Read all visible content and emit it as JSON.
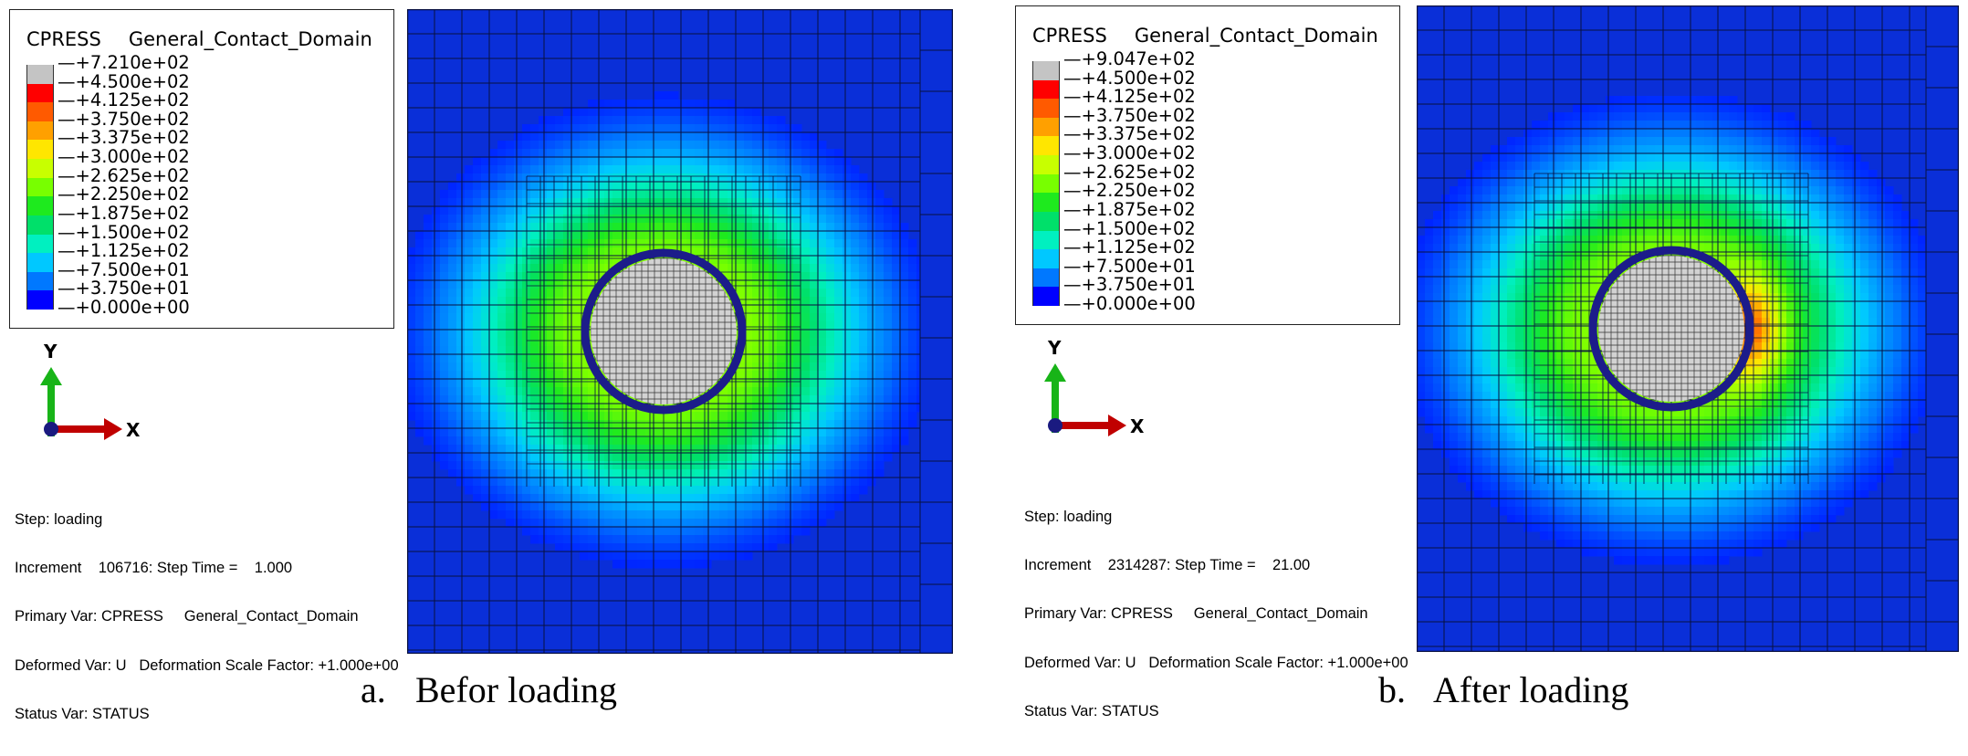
{
  "colors": {
    "legend_swatches": [
      "#c4c4c4",
      "#ff0000",
      "#ff5a00",
      "#ffa000",
      "#ffe600",
      "#c8ff00",
      "#78ff00",
      "#1eea1e",
      "#00e06a",
      "#00f0c0",
      "#00c8ff",
      "#0078ff",
      "#0000ff"
    ],
    "background_field": "#0a2fd8",
    "inclusion_fill": "#d2d2d2",
    "ring": "#1c1c8a",
    "triad_x": "#c00000",
    "triad_y": "#18b418",
    "triad_origin": "#1a1a80"
  },
  "panels": [
    {
      "legend": {
        "variable": "CPRESS",
        "domain": "General_Contact_Domain",
        "labels": [
          "+7.210e+02",
          "+4.500e+02",
          "+4.125e+02",
          "+3.750e+02",
          "+3.375e+02",
          "+3.000e+02",
          "+2.625e+02",
          "+2.250e+02",
          "+1.875e+02",
          "+1.500e+02",
          "+1.125e+02",
          "+7.500e+01",
          "+3.750e+01",
          "+0.000e+00"
        ]
      },
      "triad": {
        "y_label": "Y",
        "x_label": "X"
      },
      "info": {
        "step": "Step: loading",
        "increment": "Increment    106716: Step Time =    1.000",
        "primary": "Primary Var: CPRESS     General_Contact_Domain",
        "deformed": "Deformed Var: U   Deformation Scale Factor: +1.000e+00",
        "status": "Status Var: STATUS"
      },
      "contact_peak_relative": 0.0,
      "caption": {
        "letter": "a.",
        "text": "Befor loading"
      }
    },
    {
      "legend": {
        "variable": "CPRESS",
        "domain": "General_Contact_Domain",
        "labels": [
          "+9.047e+02",
          "+4.500e+02",
          "+4.125e+02",
          "+3.750e+02",
          "+3.375e+02",
          "+3.000e+02",
          "+2.625e+02",
          "+2.250e+02",
          "+1.875e+02",
          "+1.500e+02",
          "+1.125e+02",
          "+7.500e+01",
          "+3.750e+01",
          "+0.000e+00"
        ]
      },
      "triad": {
        "y_label": "Y",
        "x_label": "X"
      },
      "info": {
        "step": "Step: loading",
        "increment": "Increment    2314287: Step Time =    21.00",
        "primary": "Primary Var: CPRESS     General_Contact_Domain",
        "deformed": "Deformed Var: U   Deformation Scale Factor: +1.000e+00",
        "status": "Status Var: STATUS"
      },
      "contact_peak_relative": 1.0,
      "caption": {
        "letter": "b.",
        "text": "After loading"
      }
    }
  ]
}
